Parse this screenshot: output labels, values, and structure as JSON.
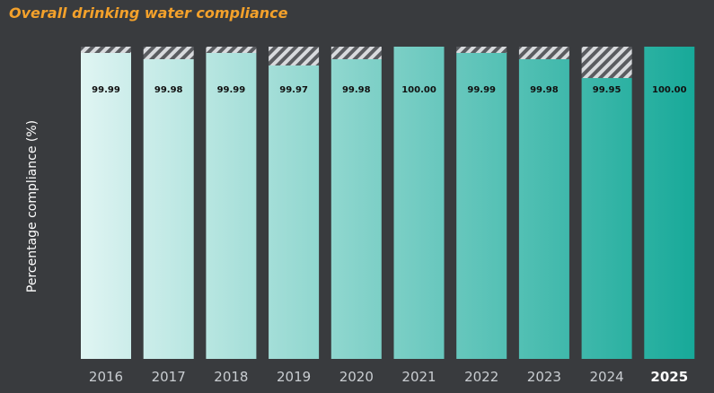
{
  "chart_data": {
    "type": "bar",
    "title": "Overall drinking water compliance",
    "xlabel": "",
    "ylabel": "Percentage compliance (%)",
    "categories": [
      "2016",
      "2017",
      "2018",
      "2019",
      "2020",
      "2021",
      "2022",
      "2023",
      "2024",
      "2025"
    ],
    "values": [
      99.99,
      99.98,
      99.99,
      99.97,
      99.98,
      100.0,
      99.99,
      99.98,
      99.95,
      100.0
    ],
    "value_labels": [
      "99.99",
      "99.98",
      "99.99",
      "99.97",
      "99.98",
      "100.00",
      "99.99",
      "99.98",
      "99.95",
      "100.00"
    ],
    "highlight_category": "2025",
    "shortfall_pattern": "diagonal-hatch",
    "grid": false,
    "legend": "none"
  },
  "colors": {
    "background": "#393b3e",
    "title": "#f3a12b",
    "bar_gradient_start": "#e0f5f3",
    "bar_gradient_end": "#17a999",
    "hatch_light": "#d8dadd",
    "hatch_dark": "#5a5c60"
  }
}
